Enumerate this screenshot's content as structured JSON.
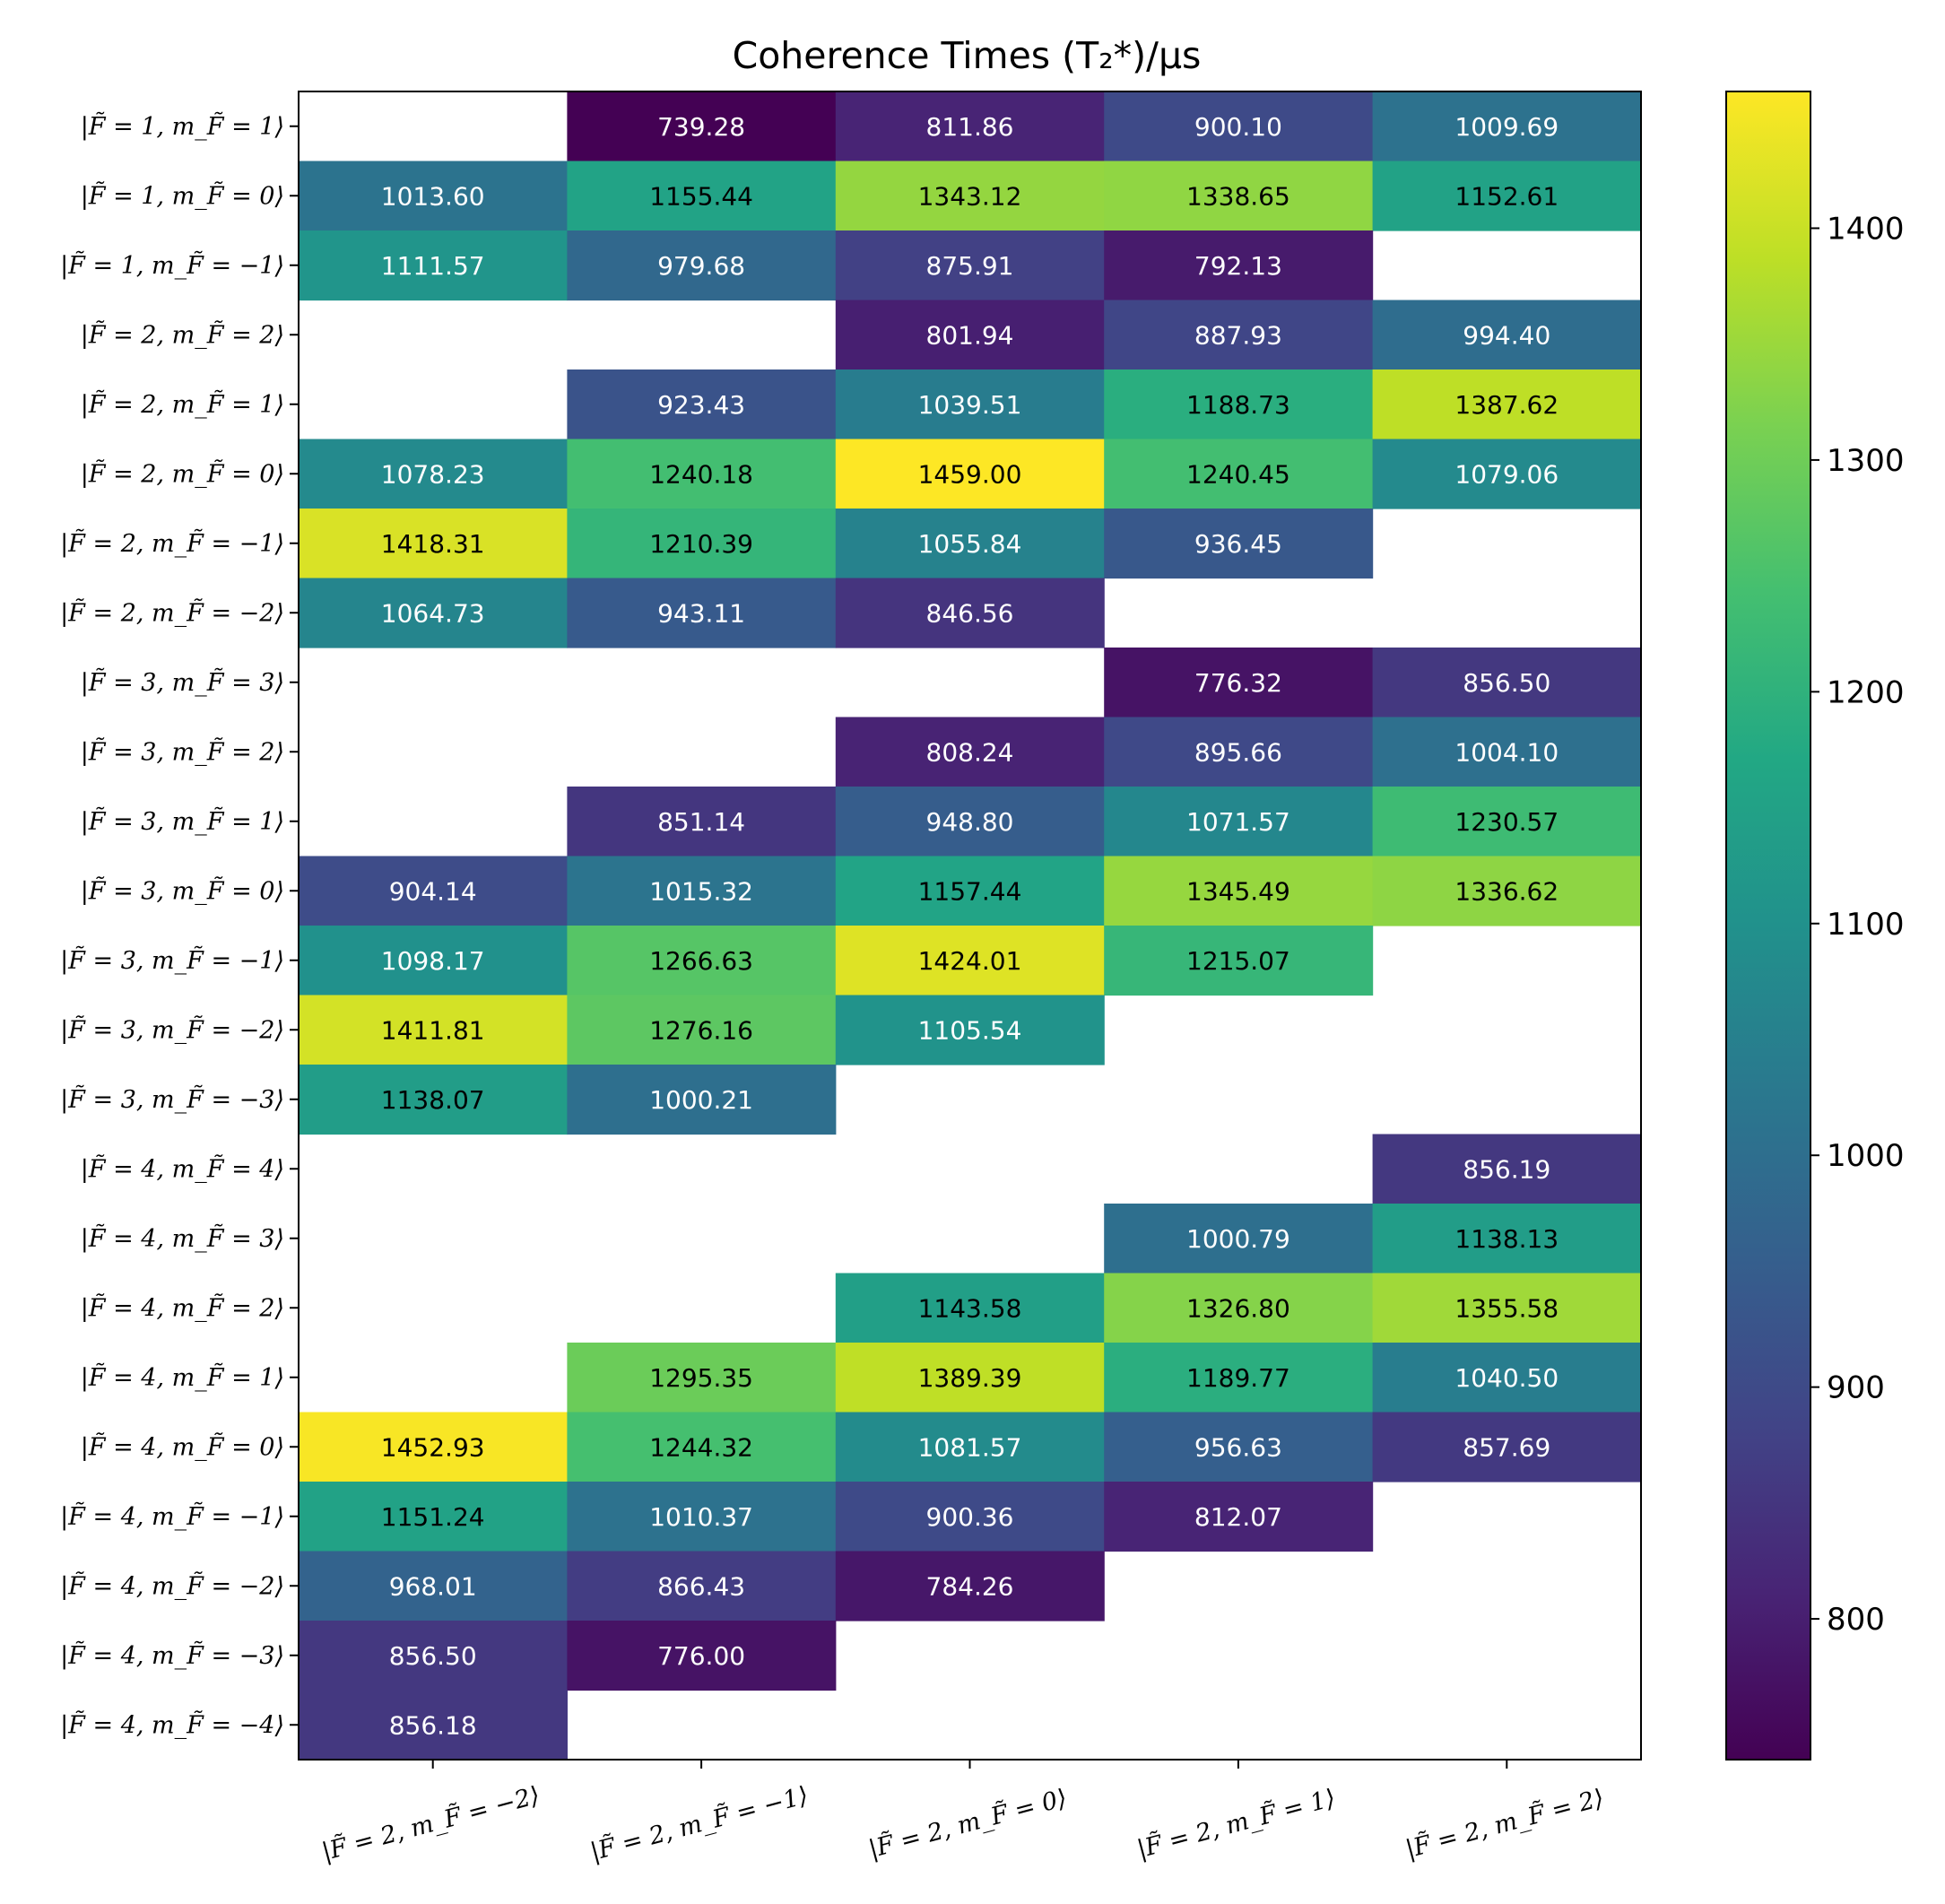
{
  "chart_data": {
    "type": "heatmap",
    "title": "Coherence Times (T₂*)/μs",
    "colormap": "viridis",
    "color_range": [
      739.28,
      1459.0
    ],
    "colorbar_ticks": [
      800,
      900,
      1000,
      1100,
      1200,
      1300,
      1400
    ],
    "colorbar_tick_labels": [
      "800",
      "900",
      "1000",
      "1100",
      "1200",
      "1300",
      "1400"
    ],
    "x_categories": [
      "|F̃ = 2, m_F̃ = −2⟩",
      "|F̃ = 2, m_F̃ = −1⟩",
      "|F̃ = 2, m_F̃ = 0⟩",
      "|F̃ = 2, m_F̃ = 1⟩",
      "|F̃ = 2, m_F̃ = 2⟩"
    ],
    "y_categories": [
      "|F̃ = 1, m_F̃ = 1⟩",
      "|F̃ = 1, m_F̃ = 0⟩",
      "|F̃ = 1, m_F̃ = −1⟩",
      "|F̃ = 2, m_F̃ = 2⟩",
      "|F̃ = 2, m_F̃ = 1⟩",
      "|F̃ = 2, m_F̃ = 0⟩",
      "|F̃ = 2, m_F̃ = −1⟩",
      "|F̃ = 2, m_F̃ = −2⟩",
      "|F̃ = 3, m_F̃ = 3⟩",
      "|F̃ = 3, m_F̃ = 2⟩",
      "|F̃ = 3, m_F̃ = 1⟩",
      "|F̃ = 3, m_F̃ = 0⟩",
      "|F̃ = 3, m_F̃ = −1⟩",
      "|F̃ = 3, m_F̃ = −2⟩",
      "|F̃ = 3, m_F̃ = −3⟩",
      "|F̃ = 4, m_F̃ = 4⟩",
      "|F̃ = 4, m_F̃ = 3⟩",
      "|F̃ = 4, m_F̃ = 2⟩",
      "|F̃ = 4, m_F̃ = 1⟩",
      "|F̃ = 4, m_F̃ = 0⟩",
      "|F̃ = 4, m_F̃ = −1⟩",
      "|F̃ = 4, m_F̃ = −2⟩",
      "|F̃ = 4, m_F̃ = −3⟩",
      "|F̃ = 4, m_F̃ = −4⟩"
    ],
    "values": [
      [
        null,
        739.28,
        811.86,
        900.1,
        1009.69
      ],
      [
        1013.6,
        1155.44,
        1343.12,
        1338.65,
        1152.61
      ],
      [
        1111.57,
        979.68,
        875.91,
        792.13,
        null
      ],
      [
        null,
        null,
        801.94,
        887.93,
        994.4
      ],
      [
        null,
        923.43,
        1039.51,
        1188.73,
        1387.62
      ],
      [
        1078.23,
        1240.18,
        1459.0,
        1240.45,
        1079.06
      ],
      [
        1418.31,
        1210.39,
        1055.84,
        936.45,
        null
      ],
      [
        1064.73,
        943.11,
        846.56,
        null,
        null
      ],
      [
        null,
        null,
        null,
        776.32,
        856.5
      ],
      [
        null,
        null,
        808.24,
        895.66,
        1004.1
      ],
      [
        null,
        851.14,
        948.8,
        1071.57,
        1230.57
      ],
      [
        904.14,
        1015.32,
        1157.44,
        1345.49,
        1336.62
      ],
      [
        1098.17,
        1266.63,
        1424.01,
        1215.07,
        null
      ],
      [
        1411.81,
        1276.16,
        1105.54,
        null,
        null
      ],
      [
        1138.07,
        1000.21,
        null,
        null,
        null
      ],
      [
        null,
        null,
        null,
        null,
        856.19
      ],
      [
        null,
        null,
        null,
        1000.79,
        1138.13
      ],
      [
        null,
        null,
        1143.58,
        1326.8,
        1355.58
      ],
      [
        null,
        1295.35,
        1389.39,
        1189.77,
        1040.5
      ],
      [
        1452.93,
        1244.32,
        1081.57,
        956.63,
        857.69
      ],
      [
        1151.24,
        1010.37,
        900.36,
        812.07,
        null
      ],
      [
        968.01,
        866.43,
        784.26,
        null,
        null
      ],
      [
        856.5,
        776.0,
        null,
        null,
        null
      ],
      [
        856.18,
        null,
        null,
        null,
        null
      ]
    ]
  }
}
